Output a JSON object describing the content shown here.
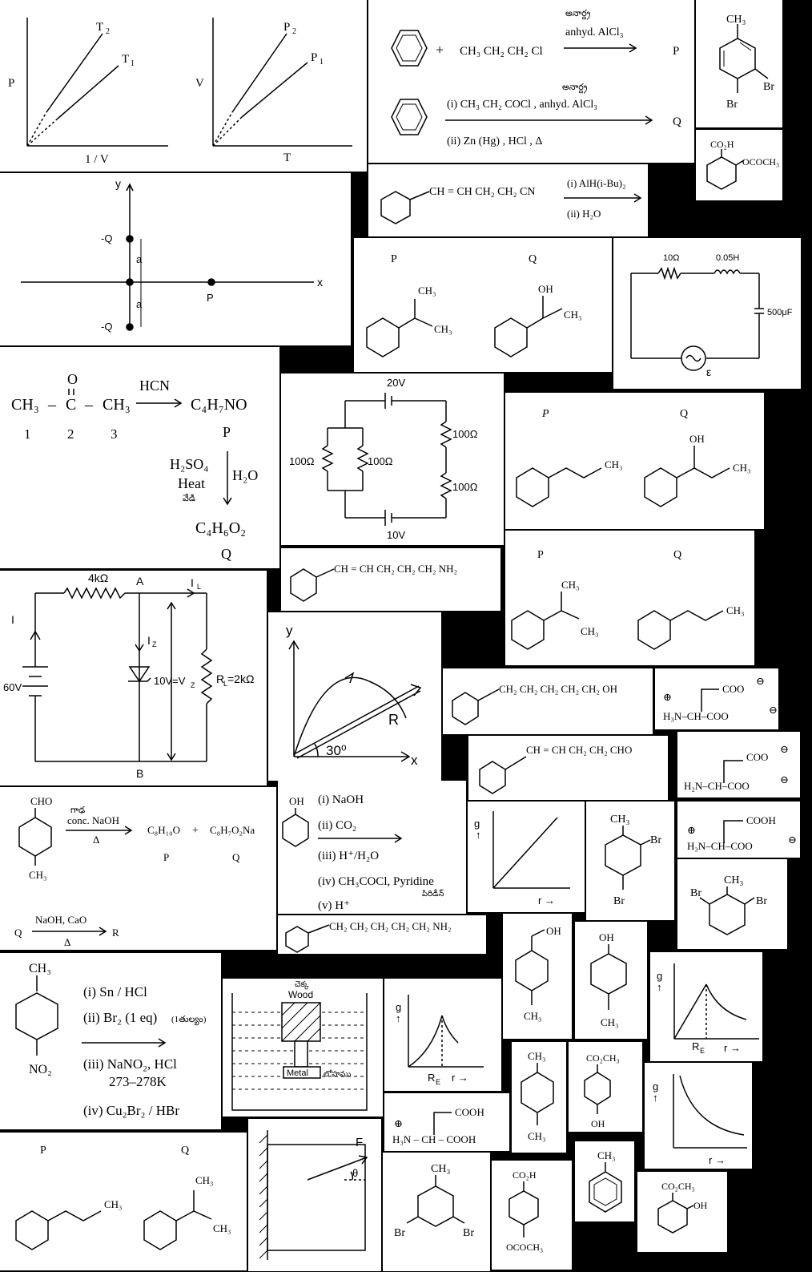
{
  "pv": {
    "t2": "T",
    "t2s": "2",
    "t1": "T",
    "t1s": "1",
    "p": "P",
    "xlab": "1 / V"
  },
  "vt": {
    "p2": "P",
    "p2s": "2",
    "p1": "P",
    "p1s": "1",
    "v": "V",
    "xlab": "T"
  },
  "fc1": {
    "plus": "+",
    "r": "CH₃ CH₂ CH₂ Cl",
    "tel": "అనార్ద్ర",
    "cat": "anhyd. AlCl₃",
    "p": "P"
  },
  "fc2": {
    "tel": "అనార్ద్ర",
    "s1": "(i) CH₃ CH₂ COCl , anhyd. AlCl₃",
    "s2": "(ii) Zn (Hg) , HCl , Δ",
    "q": "Q"
  },
  "dbt": {
    "ch3": "CH₃",
    "br1": "Br",
    "br2": "Br"
  },
  "asp": {
    "a": "CO₂H",
    "b": "OCOCH₃"
  },
  "nit": {
    "r": "CH = CH CH₂ CH₂ CN",
    "s1": "(i) AlH(i-Bu)₂",
    "s2": "(ii) H₂O"
  },
  "dip": {
    "y": "y",
    "x": "x",
    "q1": "-Q",
    "q2": "-Q",
    "a1": "a",
    "a2": "a",
    "p": "P"
  },
  "pq1": {
    "p": "P",
    "q": "Q",
    "ch3a": "CH₃",
    "ch3b": "CH₃",
    "oh": "OH",
    "ch3c": "CH₃"
  },
  "lcr": {
    "r": "10Ω",
    "l": "0.05H",
    "c": "500μF",
    "e": "ε"
  },
  "hcn": {
    "c1": "CH₃",
    "c": "C",
    "o": "O",
    "c3": "CH₃",
    "reag": "HCN",
    "prod": "C₄H₇NO",
    "n1": "1",
    "n2": "2",
    "n3": "3",
    "p": "P",
    "r1": "H₂SO₄",
    "r2": "Heat",
    "r3": "వేడి",
    "r4": "H₂O",
    "prod2": "C₄H₆O₂",
    "q": "Q"
  },
  "res": {
    "v1": "20V",
    "v2": "10V",
    "ra": "100Ω",
    "rb": "100Ω",
    "rc": "100Ω",
    "rd": "100Ω"
  },
  "pq2": {
    "p": "P",
    "q": "Q",
    "ch3a": "CH₃",
    "oh": "OH",
    "ch3b": "CH₃"
  },
  "am1": {
    "r": "CH = CH CH₂ CH₂ CH₂ NH₂"
  },
  "pq3": {
    "p": "P",
    "q": "Q",
    "ch3a": "CH₃",
    "ch3b": "CH₃",
    "ch3c": "CH₃"
  },
  "zen": {
    "r": "4kΩ",
    "a": "A",
    "il": "I",
    "ils": "L",
    "i": "I",
    "iz": "I",
    "izs": "Z",
    "v": "60V",
    "vz": "10V=V",
    "vzs": "Z",
    "rl": "R",
    "rls": "L",
    "rlv": "=2kΩ",
    "b": "B"
  },
  "proj": {
    "y": "y",
    "x": "x",
    "r": "R",
    "ang": "30⁰"
  },
  "alc": {
    "r": "CH₂ CH₂ CH₂ CH₂ CH₂ OH"
  },
  "gly1": {
    "plus": "⊕",
    "top": "COO",
    "left": "H₃N–CH–COO",
    "m1": "⊖",
    "m2": "⊖"
  },
  "ald": {
    "r": "CH = CH CH₂ CH₂ CHO"
  },
  "gly2": {
    "top": "COO",
    "left": "H₂N–CH–COO",
    "m1": "⊖",
    "m2": "⊖"
  },
  "can": {
    "cho": "CHO",
    "tel": "గాఢ",
    "reag": "conc. NaOH",
    "d": "Δ",
    "ch3": "CH₃",
    "p1": "C₈H₁₀O",
    "plus": "+",
    "p2": "C₈H₇O₂Na",
    "p": "P",
    "q": "Q",
    "q2": "Q",
    "reag2": "NaOH, CaO",
    "d2": "Δ",
    "r": "R"
  },
  "phe": {
    "oh": "OH",
    "s1": "(i) NaOH",
    "s2": "(ii) CO₂",
    "s3": "(iii) H⁺/H₂O",
    "s4": "(iv) CH₃COCl, Pyridine",
    "tel": "పిరిడీన్",
    "s5": "(v) H⁺"
  },
  "g1": {
    "g": "g",
    "r": "r →"
  },
  "dbt2": {
    "ch3": "CH₃",
    "br1": "Br",
    "br2": "Br"
  },
  "gly3": {
    "plus": "⊕",
    "top": "COOH",
    "left": "H₃N–CH–COO",
    "m": "⊖"
  },
  "dbt3": {
    "br1": "Br",
    "ch3": "CH₃",
    "br2": "Br"
  },
  "am2": {
    "r": "CH₂ CH₂ CH₂ CH₂ CH₂ NH₂"
  },
  "ba": {
    "oh": "OH",
    "ch3": "CH₃"
  },
  "pc": {
    "oh": "OH",
    "ch3": "CH₃"
  },
  "g2": {
    "g": "g",
    "re": "R",
    "res": "E",
    "r": "r →"
  },
  "tol": {
    "ch3": "CH₃",
    "s1": "(i) Sn / HCl",
    "s2": "(ii) Br₂ (1 eq)",
    "tel2": "(1తుల్యం)",
    "s3": "(iii) NaNO₂, HCl",
    "s3b": "273–278K",
    "s4": "(iv) Cu₂Br₂ / HBr",
    "no2": "NO₂"
  },
  "wood": {
    "tel1": "చెక్క",
    "w": "Wood",
    "m": "Metal",
    "tel2": "లోహము"
  },
  "g3": {
    "g": "g",
    "re": "R",
    "res": "E",
    "r": "r →"
  },
  "xyl": {
    "ch3a": "CH₃",
    "ch3b": "CH₃"
  },
  "mp": {
    "a": "CO₂CH₃",
    "b": "OH"
  },
  "g4": {
    "g": "g",
    "r": "r →"
  },
  "gly4": {
    "plus": "⊕",
    "top": "COOH",
    "left": "H₃N – CH – COOH"
  },
  "pq4": {
    "p": "P",
    "q": "Q",
    "ch3a": "CH₃",
    "ch3b": "CH₃",
    "ch3c": "CH₃"
  },
  "blk": {
    "f": "F",
    "th": "θ"
  },
  "dbt4": {
    "ch3": "CH₃",
    "br1": "Br",
    "br2": "Br"
  },
  "asp2": {
    "a": "CO₂H",
    "b": "OCOCH₃"
  },
  "tol2": {
    "ch3": "CH₃"
  },
  "ms": {
    "a": "CO₂CH₃",
    "b": "OH"
  }
}
